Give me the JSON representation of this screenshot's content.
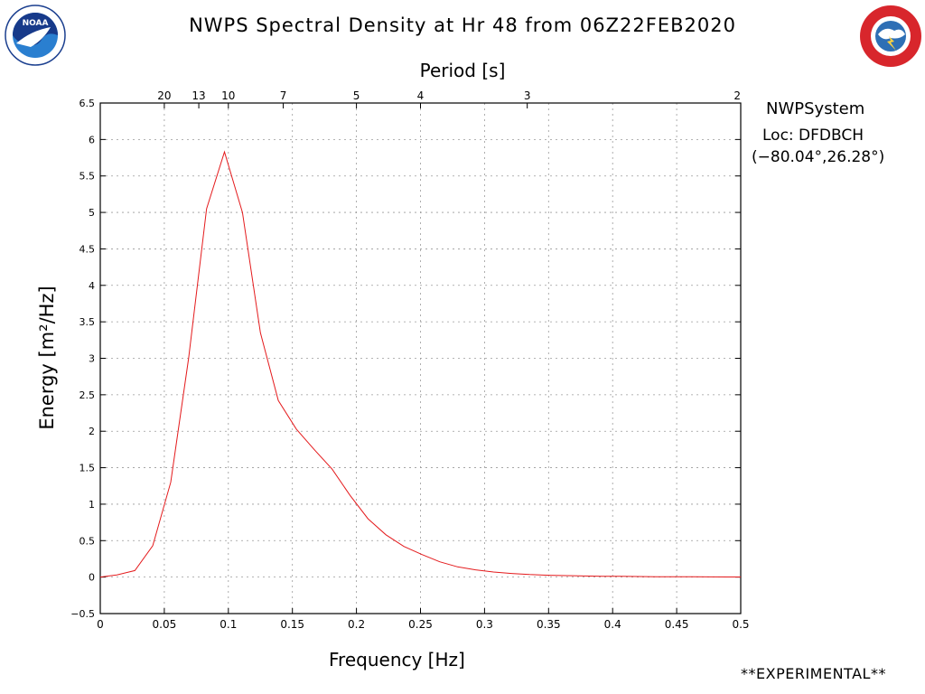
{
  "header": {
    "title": "NWPS Spectral Density at Hr 48 from 06Z22FEB2020"
  },
  "info": {
    "system": "NWPSystem",
    "location": "Loc: DFDBCH",
    "coordinates": "(−80.04°,26.28°)"
  },
  "footer": {
    "label": "**EXPERIMENTAL**"
  },
  "logos": {
    "left": "noaa-logo",
    "right": "national-weather-service-logo"
  },
  "colors": {
    "series": "#e41a1c",
    "grid": "#9a9a9a",
    "axis": "#000000"
  },
  "chart_data": {
    "type": "line",
    "title": "NWPS Spectral Density at Hr 48 from 06Z22FEB2020",
    "xlabel": "Frequency [Hz]",
    "ylabel": "Energy [m²/Hz]",
    "top_axis_label": "Period [s]",
    "xlim": [
      0,
      0.5
    ],
    "ylim": [
      -0.5,
      6.5
    ],
    "x_ticks": [
      0,
      0.05,
      0.1,
      0.15,
      0.2,
      0.25,
      0.3,
      0.35,
      0.4,
      0.45,
      0.5
    ],
    "y_ticks": [
      -0.5,
      0,
      0.5,
      1,
      1.5,
      2,
      2.5,
      3,
      3.5,
      4,
      4.5,
      5,
      5.5,
      6,
      6.5
    ],
    "period_ticks": [
      20,
      13,
      10,
      7,
      5,
      4,
      3,
      2
    ],
    "grid": true,
    "series": [
      {
        "x": [
          0.0,
          0.013,
          0.027,
          0.041,
          0.055,
          0.069,
          0.083,
          0.097,
          0.111,
          0.125,
          0.139,
          0.153,
          0.167,
          0.181,
          0.195,
          0.209,
          0.223,
          0.237,
          0.251,
          0.265,
          0.279,
          0.293,
          0.307,
          0.321,
          0.335,
          0.35,
          0.364,
          0.378,
          0.392,
          0.406,
          0.42,
          0.434,
          0.448,
          0.462,
          0.476,
          0.49,
          0.5
        ],
        "y": [
          0.0,
          0.03,
          0.09,
          0.43,
          1.3,
          3.0,
          5.05,
          5.83,
          5.0,
          3.35,
          2.42,
          2.03,
          1.75,
          1.48,
          1.12,
          0.8,
          0.58,
          0.42,
          0.31,
          0.21,
          0.14,
          0.1,
          0.07,
          0.05,
          0.035,
          0.025,
          0.02,
          0.015,
          0.012,
          0.01,
          0.008,
          0.006,
          0.005,
          0.004,
          0.003,
          0.002,
          0.002
        ]
      }
    ]
  }
}
